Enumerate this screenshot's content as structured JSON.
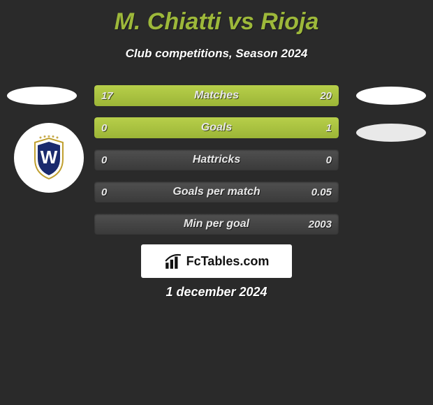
{
  "title": "M. Chiatti vs Rioja",
  "subtitle": "Club competitions, Season 2024",
  "date": "1 december 2024",
  "brand": "FcTables.com",
  "colors": {
    "accent": "#9db83a",
    "bar_fill": "#aac640",
    "bar_bg": "#474747",
    "background": "#2a2a2a",
    "text": "#ffffff"
  },
  "badge": {
    "stars_color": "#c7a94a",
    "shield_border": "#c0a030",
    "shield_fill": "#ffffff",
    "shield_inner": "#1a2a6d",
    "letter": "W",
    "letter_color": "#ffffff"
  },
  "bars": [
    {
      "label": "Matches",
      "left": "17",
      "right": "20",
      "left_fill_pct": 40,
      "right_fill_pct": 60
    },
    {
      "label": "Goals",
      "left": "0",
      "right": "1",
      "left_fill_pct": 18,
      "right_fill_pct": 82
    },
    {
      "label": "Hattricks",
      "left": "0",
      "right": "0",
      "left_fill_pct": 0,
      "right_fill_pct": 0
    },
    {
      "label": "Goals per match",
      "left": "0",
      "right": "0.05",
      "left_fill_pct": 0,
      "right_fill_pct": 0
    },
    {
      "label": "Min per goal",
      "left": "",
      "right": "2003",
      "left_fill_pct": 0,
      "right_fill_pct": 0
    }
  ]
}
